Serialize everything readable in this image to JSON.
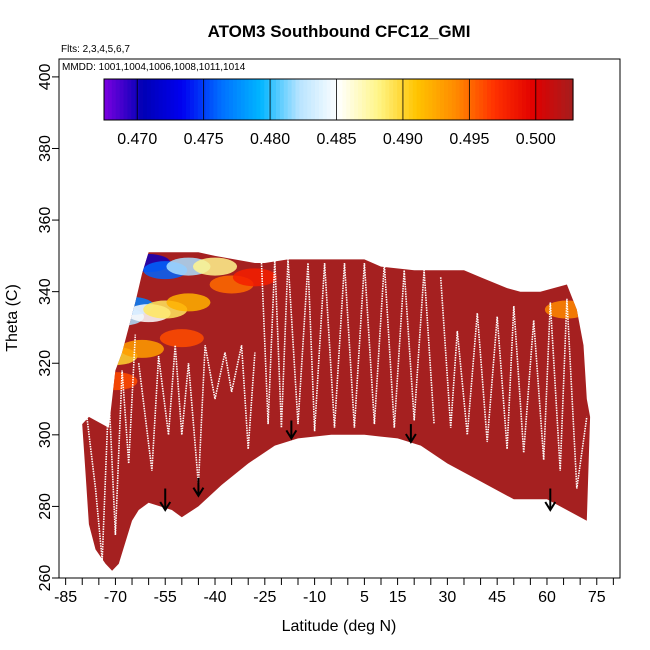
{
  "chart_data": {
    "type": "heatmap",
    "title": "ATOM3 Southbound CFC12_GMI",
    "annotations": [
      "Flts: 2,3,4,5,6,7",
      "MMDD: 1001,1004,1006,1008,1011,1014"
    ],
    "xlabel": "Latitude (deg N)",
    "ylabel": "Theta (C)",
    "xlim": [
      -87,
      82
    ],
    "ylim": [
      260,
      405
    ],
    "x_ticks": [
      -85,
      -70,
      -55,
      -40,
      -25,
      -10,
      5,
      15,
      30,
      45,
      60,
      75
    ],
    "y_ticks": [
      260,
      280,
      300,
      320,
      340,
      360,
      380,
      400
    ],
    "colorbar": {
      "min": 0.4675,
      "max": 0.5028,
      "ticks": [
        0.47,
        0.475,
        0.48,
        0.485,
        0.49,
        0.495,
        0.5
      ],
      "tick_labels": [
        "0.470",
        "0.475",
        "0.480",
        "0.485",
        "0.490",
        "0.495",
        "0.500"
      ],
      "colors": [
        "#7b00e0",
        "#0000b5",
        "#0000f0",
        "#0070ff",
        "#00b5ff",
        "#b8e4ff",
        "#ffffff",
        "#fff68a",
        "#ffc400",
        "#ff8a00",
        "#ff3000",
        "#e00000",
        "#a51e1e"
      ]
    },
    "field_color": "#a52020",
    "domain_top_theta": [
      [
        -72,
        302
      ],
      [
        -70,
        318
      ],
      [
        -68,
        323
      ],
      [
        -66,
        330
      ],
      [
        -64,
        337
      ],
      [
        -62,
        345
      ],
      [
        -60,
        351
      ],
      [
        -45,
        351
      ],
      [
        -40,
        350
      ],
      [
        -28,
        348
      ],
      [
        -25,
        348
      ],
      [
        -18,
        349
      ],
      [
        -10,
        349
      ],
      [
        5,
        349
      ],
      [
        10,
        347
      ],
      [
        20,
        346
      ],
      [
        25,
        346
      ],
      [
        35,
        346
      ],
      [
        40,
        344
      ],
      [
        48,
        341
      ],
      [
        52,
        340
      ],
      [
        58,
        340
      ],
      [
        62,
        341
      ],
      [
        66,
        342
      ],
      [
        69,
        335
      ],
      [
        71,
        325
      ],
      [
        72,
        310
      ],
      [
        73,
        305
      ]
    ],
    "domain_bottom_theta": [
      [
        73,
        305
      ],
      [
        72,
        276
      ],
      [
        60,
        282
      ],
      [
        50,
        282
      ],
      [
        40,
        287
      ],
      [
        30,
        292
      ],
      [
        22,
        297
      ],
      [
        15,
        299
      ],
      [
        5,
        300
      ],
      [
        -5,
        300
      ],
      [
        -15,
        299
      ],
      [
        -22,
        297
      ],
      [
        -30,
        292
      ],
      [
        -38,
        286
      ],
      [
        -45,
        280
      ],
      [
        -50,
        277
      ],
      [
        -53,
        279
      ],
      [
        -60,
        281
      ],
      [
        -63,
        279
      ],
      [
        -65,
        276
      ],
      [
        -67,
        270
      ],
      [
        -69,
        264
      ],
      [
        -71,
        262
      ],
      [
        -73,
        264
      ],
      [
        -76,
        268
      ],
      [
        -78,
        275
      ],
      [
        -79,
        289
      ],
      [
        -80,
        303
      ],
      [
        -78,
        305
      ]
    ],
    "low_value_region": [
      {
        "lat": -60,
        "theta": 348,
        "value": 0.47
      },
      {
        "lat": -55,
        "theta": 346,
        "value": 0.476
      },
      {
        "lat": -48,
        "theta": 347,
        "value": 0.482
      },
      {
        "lat": -40,
        "theta": 347,
        "value": 0.488
      },
      {
        "lat": -68,
        "theta": 333,
        "value": 0.482
      },
      {
        "lat": -65,
        "theta": 336,
        "value": 0.477
      },
      {
        "lat": -60,
        "theta": 334,
        "value": 0.485
      },
      {
        "lat": -55,
        "theta": 335,
        "value": 0.489
      },
      {
        "lat": -48,
        "theta": 337,
        "value": 0.492
      },
      {
        "lat": -35,
        "theta": 342,
        "value": 0.495
      },
      {
        "lat": -28,
        "theta": 344,
        "value": 0.498
      },
      {
        "lat": -70,
        "theta": 322,
        "value": 0.49
      },
      {
        "lat": -62,
        "theta": 324,
        "value": 0.493
      },
      {
        "lat": -50,
        "theta": 327,
        "value": 0.496
      },
      {
        "lat": -70,
        "theta": 315,
        "value": 0.496
      },
      {
        "lat": 66,
        "theta": 335,
        "value": 0.494
      }
    ],
    "flight_tracks": [
      [
        [
          -79,
          308
        ],
        [
          -76,
          285
        ],
        [
          -74,
          265
        ],
        [
          -72,
          312
        ],
        [
          -70,
          272
        ],
        [
          -68,
          318
        ],
        [
          -66,
          292
        ],
        [
          -64,
          328
        ]
      ],
      [
        [
          -63,
          320
        ],
        [
          -61,
          305
        ],
        [
          -59,
          290
        ],
        [
          -57,
          322
        ],
        [
          -54,
          300
        ],
        [
          -52,
          325
        ],
        [
          -50,
          300
        ],
        [
          -48,
          320
        ],
        [
          -45,
          286
        ],
        [
          -43,
          325
        ],
        [
          -40,
          310
        ],
        [
          -37,
          323
        ],
        [
          -35,
          312
        ],
        [
          -32,
          325
        ],
        [
          -30,
          296
        ],
        [
          -28,
          323
        ]
      ],
      [
        [
          -26,
          348
        ],
        [
          -24,
          303
        ],
        [
          -22,
          349
        ],
        [
          -20,
          302
        ],
        [
          -18,
          349
        ],
        [
          -15,
          303
        ],
        [
          -12,
          348
        ],
        [
          -10,
          301
        ],
        [
          -7,
          348
        ],
        [
          -4,
          302
        ],
        [
          -1,
          348
        ],
        [
          2,
          302
        ],
        [
          5,
          348
        ],
        [
          8,
          303
        ],
        [
          11,
          348
        ],
        [
          14,
          302
        ],
        [
          17,
          346
        ],
        [
          20,
          304
        ],
        [
          23,
          346
        ],
        [
          26,
          303
        ]
      ],
      [
        [
          28,
          344
        ],
        [
          31,
          302
        ],
        [
          33,
          329
        ],
        [
          36,
          300
        ],
        [
          39,
          334
        ],
        [
          42,
          298
        ],
        [
          45,
          333
        ],
        [
          48,
          296
        ],
        [
          50,
          336
        ],
        [
          53,
          295
        ],
        [
          56,
          332
        ],
        [
          59,
          293
        ],
        [
          61,
          337
        ],
        [
          64,
          290
        ],
        [
          66,
          338
        ],
        [
          69,
          285
        ],
        [
          72,
          305
        ]
      ]
    ],
    "arrows": [
      {
        "lat": -55,
        "theta_from": 285,
        "theta_to": 279
      },
      {
        "lat": -45,
        "theta_from": 288,
        "theta_to": 283
      },
      {
        "lat": -17,
        "theta_from": 304,
        "theta_to": 299
      },
      {
        "lat": 19,
        "theta_from": 303,
        "theta_to": 298
      },
      {
        "lat": 61,
        "theta_from": 285,
        "theta_to": 279
      }
    ]
  }
}
